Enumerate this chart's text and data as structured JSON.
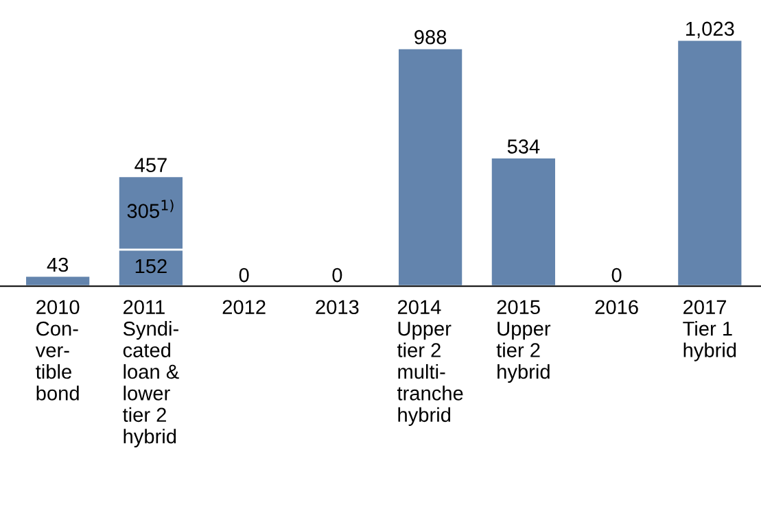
{
  "chart_data": {
    "type": "bar",
    "stacked": true,
    "categories": [
      "2010\nCon-\nver-\ntible\nbond",
      "2011\nSyndi-\ncated\nloan &\nlower\ntier 2\nhybrid",
      "2012",
      "2013",
      "2014\nUpper\ntier 2\nmulti-\ntranche\nhybrid",
      "2015\nUpper\ntier 2\nhybrid",
      "2016",
      "2017\nTier 1\nhybrid"
    ],
    "series": [
      {
        "color": "#6384ad",
        "values": [
          43,
          152,
          0,
          0,
          988,
          534,
          0,
          1023
        ],
        "value_labels": [
          "43",
          "152",
          "0",
          "0",
          "988",
          "534",
          "0",
          "1,023"
        ]
      },
      {
        "color": "#6384ad",
        "values": [
          null,
          305,
          null,
          null,
          null,
          null,
          null,
          null
        ],
        "value_labels": [
          null,
          "305$^{1)}$",
          null,
          null,
          null,
          null,
          null,
          null
        ]
      }
    ],
    "totals": [
      null,
      "457",
      null,
      null,
      null,
      null,
      null,
      null
    ],
    "grid": false,
    "legend": false
  }
}
